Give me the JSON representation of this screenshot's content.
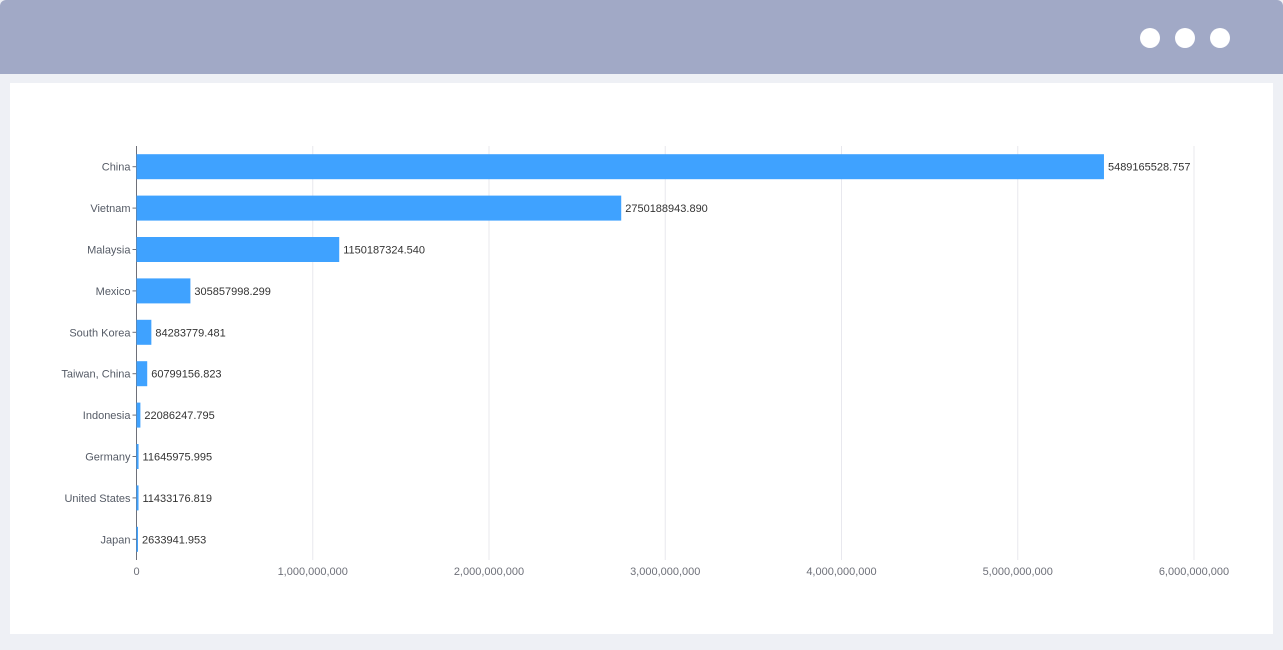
{
  "window": {
    "controls": [
      "window-dot",
      "window-dot",
      "window-dot"
    ]
  },
  "colors": {
    "titlebar": "#a1a9c6",
    "bar": "#3fa2ff",
    "grid": "#e8e8ee",
    "axis": "#6e7079"
  },
  "chart_data": {
    "type": "bar",
    "orientation": "horizontal",
    "categories": [
      "China",
      "Vietnam",
      "Malaysia",
      "Mexico",
      "South Korea",
      "Taiwan, China",
      "Indonesia",
      "Germany",
      "United States",
      "Japan"
    ],
    "values": [
      5489165528.757,
      2750188943.89,
      1150187324.54,
      305857998.299,
      84283779.481,
      60799156.823,
      22086247.795,
      11645975.995,
      11433176.819,
      2633941.953
    ],
    "value_labels": [
      "5489165528.757",
      "2750188943.890",
      "1150187324.540",
      "305857998.299",
      "84283779.481",
      "60799156.823",
      "22086247.795",
      "11645975.995",
      "11433176.819",
      "2633941.953"
    ],
    "xlim": [
      0,
      6000000000
    ],
    "xticks": [
      0,
      1000000000,
      2000000000,
      3000000000,
      4000000000,
      5000000000,
      6000000000
    ],
    "xtick_labels": [
      "0",
      "1,000,000,000",
      "2,000,000,000",
      "3,000,000,000",
      "4,000,000,000",
      "5,000,000,000",
      "6,000,000,000"
    ],
    "grid": true,
    "legend": "none"
  }
}
